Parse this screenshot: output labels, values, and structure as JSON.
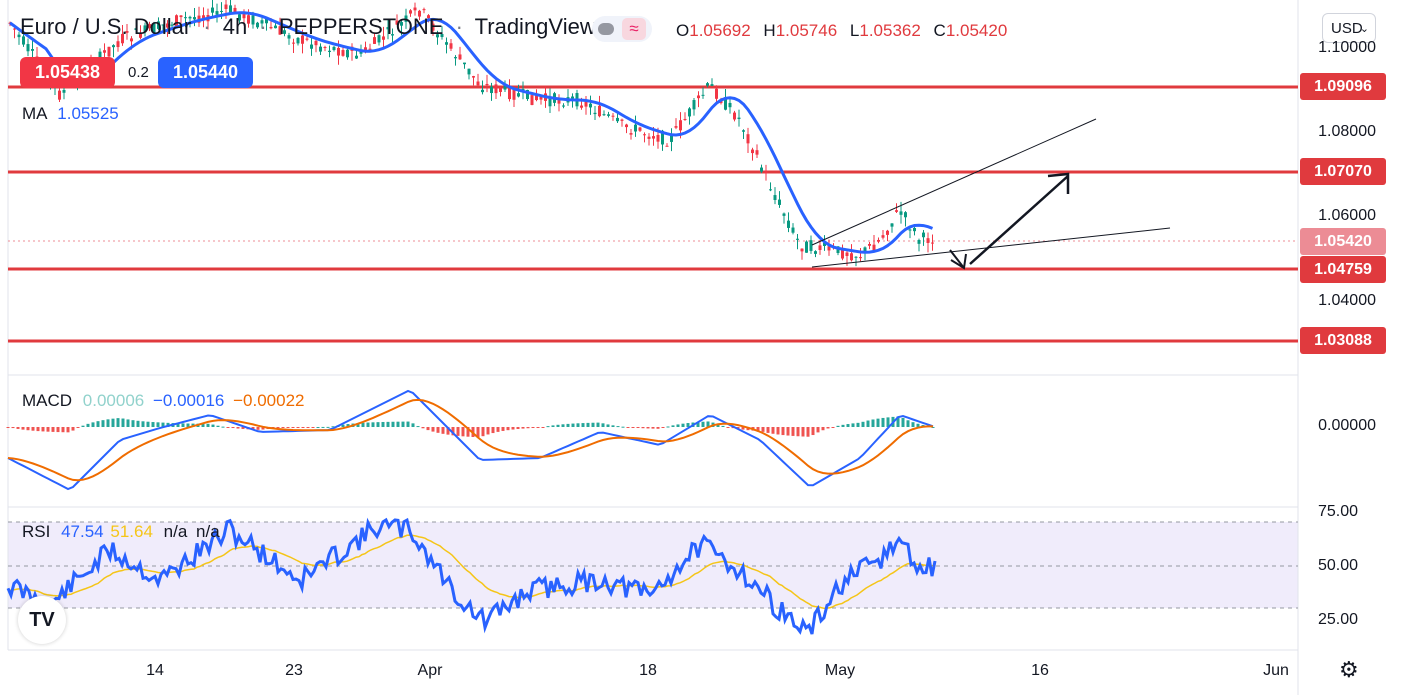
{
  "header": {
    "symbol_name": "Euro / U.S. Dollar",
    "interval": "4h",
    "exchange": "PEPPERSTONE",
    "source": "TradingView",
    "ohlc": {
      "o_label": "O",
      "o": "1.05692",
      "h_label": "H",
      "h": "1.05746",
      "l_label": "L",
      "l": "1.05362",
      "c_label": "C",
      "c": "1.05420"
    }
  },
  "trade": {
    "bid": "1.05438",
    "ask": "1.05440",
    "spread": "0.2"
  },
  "indicators": {
    "ma": {
      "label": "MA",
      "value": "1.05525",
      "color": "#2962ff"
    },
    "macd": {
      "label": "MACD",
      "hist": "0.00006",
      "macd": "−0.00016",
      "signal": "−0.00022",
      "hist_color": "#91d2cc",
      "macd_color": "#2962ff",
      "signal_color": "#ef6c00"
    },
    "rsi": {
      "label": "RSI",
      "value": "47.54",
      "ma": "51.64",
      "na1": "n/a",
      "na2": "n/a",
      "rsi_color": "#2962ff",
      "ma_color": "#f5c518"
    }
  },
  "currency_button": {
    "label": "USD",
    "icon": "chevron-down-icon"
  },
  "price_axis": {
    "ticks": [
      "1.10000",
      "1.08000",
      "1.06000",
      "1.04000"
    ]
  },
  "levels": [
    {
      "value": "1.09096",
      "color": "#e03a3e"
    },
    {
      "value": "1.07070",
      "color": "#e03a3e"
    },
    {
      "value": "1.04759",
      "color": "#e03a3e"
    },
    {
      "value": "1.03088",
      "color": "#e03a3e"
    }
  ],
  "last_price": {
    "value": "1.05420",
    "color": "#ec8c95"
  },
  "macd_axis": {
    "ticks": [
      "0.00000"
    ]
  },
  "rsi_axis": {
    "ticks": [
      "75.00",
      "50.00",
      "25.00"
    ]
  },
  "time_axis": {
    "labels": [
      "14",
      "23",
      "Apr",
      "18",
      "May",
      "16",
      "Jun"
    ]
  },
  "logo": {
    "text": "TV"
  },
  "settings_icon": "gear-icon"
}
